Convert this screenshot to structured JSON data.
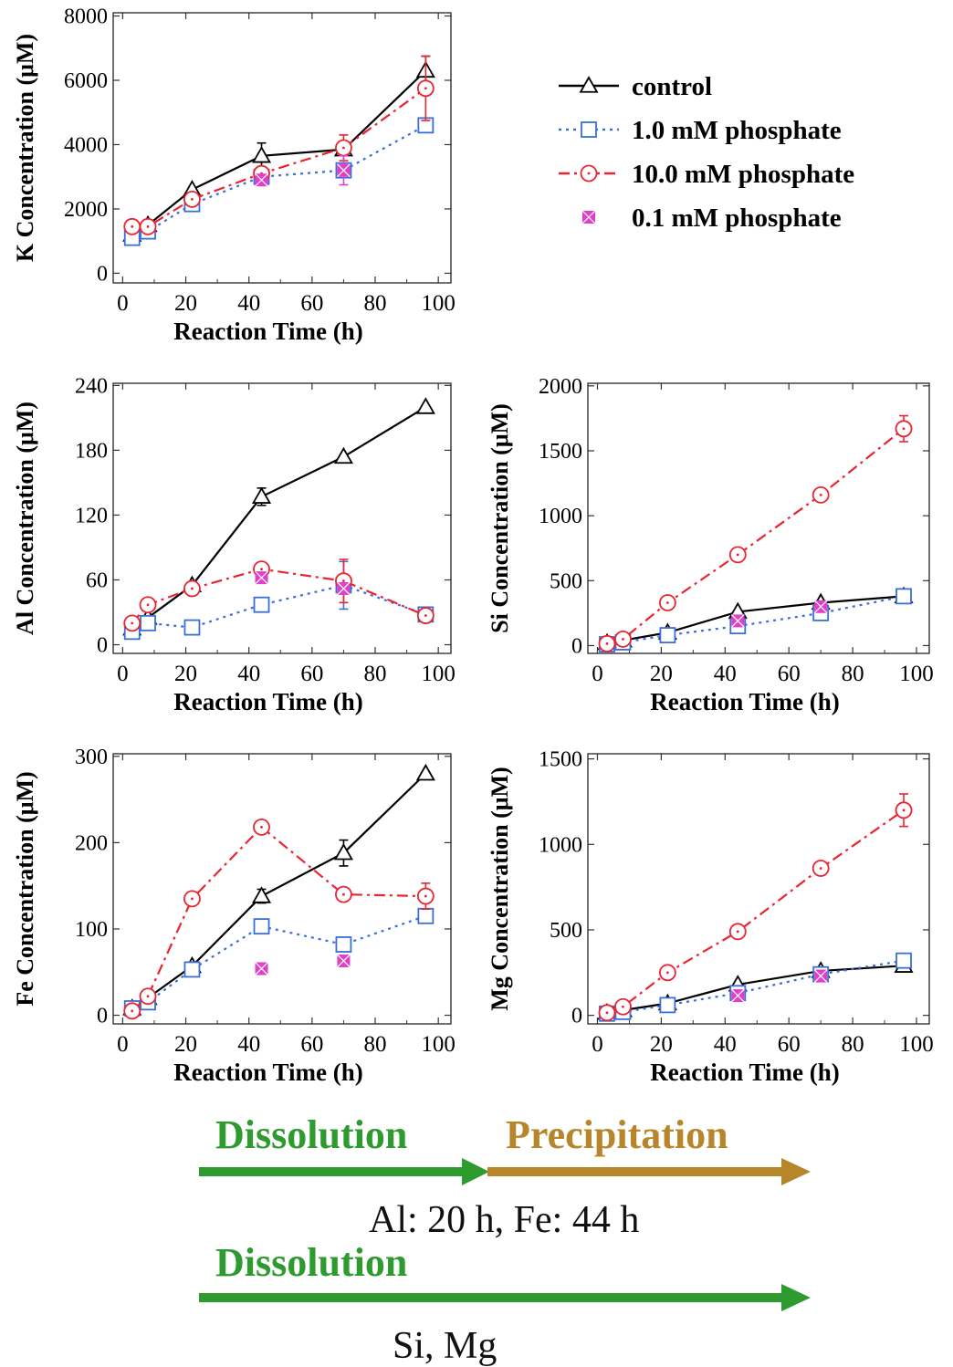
{
  "legend": {
    "entries": [
      {
        "label": "control",
        "color": "#000000",
        "marker": "triangle",
        "dash": "solid"
      },
      {
        "label": "1.0 mM phosphate",
        "color": "#3a6fd8",
        "marker": "square",
        "dash": "dot"
      },
      {
        "label": "10.0 mM phosphate",
        "color": "#ea2430",
        "marker": "circle",
        "dash": "dashdot"
      },
      {
        "label": "0.1 mM phosphate",
        "color": "#e040c8",
        "marker": "x-square",
        "dash": "none"
      }
    ]
  },
  "chart_data": [
    {
      "type": "line",
      "id": "K",
      "xlabel": "Reaction Time (h)",
      "ylabel": "K Concentration (μM)",
      "xlim": [
        -3,
        104
      ],
      "ylim": [
        -300,
        8100
      ],
      "xticks": [
        "0",
        "20",
        "40",
        "60",
        "80",
        "100"
      ],
      "xtick_values": [
        0,
        20,
        40,
        60,
        80,
        100
      ],
      "yticks": [
        "0",
        "2000",
        "4000",
        "6000",
        "8000"
      ],
      "ytick_values": [
        0,
        2000,
        4000,
        6000,
        8000
      ],
      "series": [
        {
          "name": "control",
          "x": [
            3,
            8,
            22,
            44,
            70,
            96
          ],
          "y": [
            1200,
            1500,
            2600,
            3650,
            3850,
            6300
          ],
          "err": [
            0,
            0,
            0,
            400,
            0,
            450
          ]
        },
        {
          "name": "1.0 mM phosphate",
          "x": [
            3,
            8,
            22,
            44,
            70,
            96
          ],
          "y": [
            1100,
            1300,
            2150,
            3000,
            3200,
            4600
          ],
          "err": [
            0,
            0,
            0,
            0,
            0,
            0
          ]
        },
        {
          "name": "10.0 mM phosphate",
          "x": [
            3,
            8,
            22,
            44,
            70,
            96
          ],
          "y": [
            1450,
            1450,
            2300,
            3100,
            3900,
            5750
          ],
          "err": [
            0,
            0,
            0,
            0,
            400,
            1000
          ]
        },
        {
          "name": "0.1 mM phosphate",
          "x": [
            44,
            70
          ],
          "y": [
            2900,
            3200
          ],
          "err": [
            0,
            450
          ]
        }
      ]
    },
    {
      "type": "line",
      "id": "Al",
      "xlabel": "Reaction Time (h)",
      "ylabel": "Al Concentration (μM)",
      "xlim": [
        -3,
        104
      ],
      "ylim": [
        -8,
        242
      ],
      "xticks": [
        "0",
        "20",
        "40",
        "60",
        "80",
        "100"
      ],
      "xtick_values": [
        0,
        20,
        40,
        60,
        80,
        100
      ],
      "yticks": [
        "0",
        "60",
        "120",
        "180",
        "240"
      ],
      "ytick_values": [
        0,
        60,
        120,
        180,
        240
      ],
      "series": [
        {
          "name": "control",
          "x": [
            3,
            8,
            22,
            44,
            70,
            96
          ],
          "y": [
            15,
            25,
            55,
            137,
            174,
            220
          ],
          "err": [
            0,
            0,
            0,
            8,
            0,
            0
          ]
        },
        {
          "name": "1.0 mM phosphate",
          "x": [
            3,
            8,
            22,
            44,
            70,
            96
          ],
          "y": [
            12,
            20,
            16,
            37,
            55,
            28
          ],
          "err": [
            0,
            0,
            0,
            0,
            22,
            0
          ]
        },
        {
          "name": "10.0 mM phosphate",
          "x": [
            3,
            8,
            22,
            44,
            70,
            96
          ],
          "y": [
            20,
            37,
            52,
            70,
            59,
            27
          ],
          "err": [
            0,
            0,
            0,
            5,
            20,
            0
          ]
        },
        {
          "name": "0.1 mM phosphate",
          "x": [
            44,
            70
          ],
          "y": [
            62,
            52
          ],
          "err": [
            0,
            0
          ]
        }
      ]
    },
    {
      "type": "line",
      "id": "Si",
      "xlabel": "Reaction Time (h)",
      "ylabel": "Si Concentration (μM)",
      "xlim": [
        -3,
        104
      ],
      "ylim": [
        -60,
        2020
      ],
      "xticks": [
        "0",
        "20",
        "40",
        "60",
        "80",
        "100"
      ],
      "xtick_values": [
        0,
        20,
        40,
        60,
        80,
        100
      ],
      "yticks": [
        "0",
        "500",
        "1000",
        "1500",
        "2000"
      ],
      "ytick_values": [
        0,
        500,
        1000,
        1500,
        2000
      ],
      "series": [
        {
          "name": "control",
          "x": [
            3,
            8,
            22,
            44,
            70,
            96
          ],
          "y": [
            20,
            40,
            100,
            260,
            330,
            380
          ],
          "err": [
            0,
            0,
            0,
            0,
            0,
            0
          ]
        },
        {
          "name": "1.0 mM phosphate",
          "x": [
            3,
            8,
            22,
            44,
            70,
            96
          ],
          "y": [
            10,
            25,
            80,
            150,
            250,
            380
          ],
          "err": [
            0,
            0,
            0,
            0,
            0,
            0
          ]
        },
        {
          "name": "10.0 mM phosphate",
          "x": [
            3,
            8,
            22,
            44,
            70,
            96
          ],
          "y": [
            15,
            50,
            330,
            700,
            1160,
            1670
          ],
          "err": [
            0,
            0,
            0,
            0,
            0,
            100
          ]
        },
        {
          "name": "0.1 mM phosphate",
          "x": [
            44,
            70
          ],
          "y": [
            190,
            300
          ],
          "err": [
            0,
            0
          ]
        }
      ]
    },
    {
      "type": "line",
      "id": "Fe",
      "xlabel": "Reaction Time (h)",
      "ylabel": "Fe Concentration (μM)",
      "xlim": [
        -3,
        104
      ],
      "ylim": [
        -10,
        303
      ],
      "xticks": [
        "0",
        "20",
        "40",
        "60",
        "80",
        "100"
      ],
      "xtick_values": [
        0,
        20,
        40,
        60,
        80,
        100
      ],
      "yticks": [
        "0",
        "100",
        "200",
        "300"
      ],
      "ytick_values": [
        0,
        100,
        200,
        300
      ],
      "series": [
        {
          "name": "control",
          "x": [
            3,
            8,
            22,
            44,
            70,
            96
          ],
          "y": [
            8,
            20,
            57,
            138,
            188,
            280
          ],
          "err": [
            0,
            0,
            0,
            8,
            15,
            0
          ]
        },
        {
          "name": "1.0 mM phosphate",
          "x": [
            3,
            8,
            22,
            44,
            70,
            96
          ],
          "y": [
            8,
            15,
            53,
            103,
            82,
            115
          ],
          "err": [
            0,
            0,
            0,
            0,
            0,
            0
          ]
        },
        {
          "name": "10.0 mM phosphate",
          "x": [
            3,
            8,
            22,
            44,
            70,
            96
          ],
          "y": [
            5,
            22,
            135,
            218,
            140,
            138
          ],
          "err": [
            0,
            0,
            0,
            0,
            0,
            15
          ]
        },
        {
          "name": "0.1 mM phosphate",
          "x": [
            44,
            70
          ],
          "y": [
            54,
            63
          ],
          "err": [
            0,
            0
          ]
        }
      ]
    },
    {
      "type": "line",
      "id": "Mg",
      "xlabel": "Reaction Time (h)",
      "ylabel": "Mg Concentration (μM)",
      "xlim": [
        -3,
        104
      ],
      "ylim": [
        -50,
        1530
      ],
      "xticks": [
        "0",
        "20",
        "40",
        "60",
        "80",
        "100"
      ],
      "xtick_values": [
        0,
        20,
        40,
        60,
        80,
        100
      ],
      "yticks": [
        "0",
        "500",
        "1000",
        "1500"
      ],
      "ytick_values": [
        0,
        500,
        1000,
        1500
      ],
      "series": [
        {
          "name": "control",
          "x": [
            3,
            8,
            22,
            44,
            70,
            96
          ],
          "y": [
            15,
            30,
            70,
            180,
            260,
            290
          ],
          "err": [
            0,
            0,
            0,
            0,
            0,
            0
          ]
        },
        {
          "name": "1.0 mM phosphate",
          "x": [
            3,
            8,
            22,
            44,
            70,
            96
          ],
          "y": [
            10,
            20,
            60,
            130,
            240,
            320
          ],
          "err": [
            0,
            0,
            0,
            0,
            0,
            0
          ]
        },
        {
          "name": "10.0 mM phosphate",
          "x": [
            3,
            8,
            22,
            44,
            70,
            96
          ],
          "y": [
            15,
            50,
            250,
            490,
            860,
            1200
          ],
          "err": [
            0,
            0,
            0,
            0,
            0,
            95
          ]
        },
        {
          "name": "0.1 mM phosphate",
          "x": [
            44,
            70
          ],
          "y": [
            115,
            230
          ],
          "err": [
            0,
            0
          ]
        }
      ]
    }
  ],
  "process": {
    "row1": {
      "dissolution": "Dissolution",
      "precipitation": "Precipitation",
      "caption": "Al: 20 h, Fe: 44 h"
    },
    "row2": {
      "dissolution": "Dissolution",
      "caption": "Si, Mg"
    },
    "colors": {
      "dissolution": "#2e9b2e",
      "precipitation": "#b8862a"
    }
  }
}
